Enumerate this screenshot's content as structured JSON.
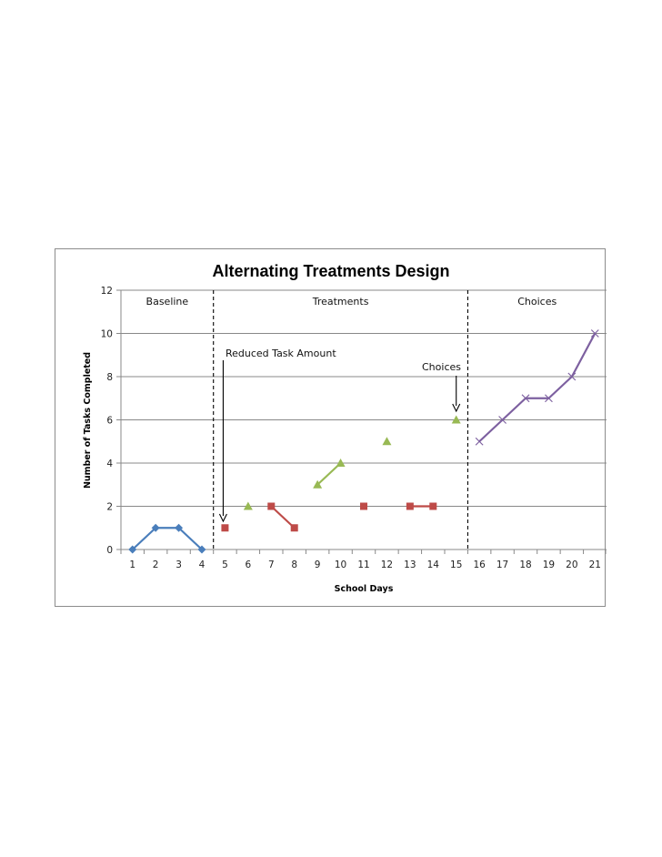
{
  "chart_data": {
    "type": "line",
    "title": "Alternating Treatments Design",
    "xlabel": "School Days",
    "ylabel": "Number of Tasks Completed",
    "x_categories": [
      "1",
      "2",
      "3",
      "4",
      "5",
      "6",
      "7",
      "8",
      "9",
      "10",
      "11",
      "12",
      "13",
      "14",
      "15",
      "16",
      "17",
      "18",
      "19",
      "20",
      "21"
    ],
    "ylim": [
      0,
      12
    ],
    "yticks": [
      "0",
      "2",
      "4",
      "6",
      "8",
      "10",
      "12"
    ],
    "grid": true,
    "phase_lines_after_day": [
      4,
      15
    ],
    "phase_labels": [
      "Baseline",
      "Treatments",
      "Choices"
    ],
    "annotations": [
      {
        "text": "Reduced Task Amount",
        "points_to_day": 5
      },
      {
        "text": "Choices",
        "points_to_day": 15
      }
    ],
    "series": [
      {
        "color": "#4a7ebb",
        "marker": "diamond",
        "segments": [
          [
            [
              1,
              0
            ],
            [
              2,
              1
            ],
            [
              3,
              1
            ],
            [
              4,
              0
            ]
          ]
        ]
      },
      {
        "color": "#be4b48",
        "marker": "square",
        "segments": [
          [
            [
              5,
              1
            ]
          ],
          [
            [
              7,
              2
            ],
            [
              8,
              1
            ]
          ],
          [
            [
              11,
              2
            ]
          ],
          [
            [
              13,
              2
            ],
            [
              14,
              2
            ]
          ]
        ]
      },
      {
        "color": "#98b954",
        "marker": "triangle",
        "segments": [
          [
            [
              6,
              2
            ]
          ],
          [
            [
              9,
              3
            ],
            [
              10,
              4
            ]
          ],
          [
            [
              12,
              5
            ]
          ],
          [
            [
              15,
              6
            ]
          ]
        ]
      },
      {
        "color": "#7d60a0",
        "marker": "x",
        "segments": [
          [
            [
              16,
              5
            ],
            [
              17,
              6
            ],
            [
              18,
              7
            ],
            [
              19,
              7
            ],
            [
              20,
              8
            ],
            [
              21,
              10
            ]
          ]
        ]
      }
    ]
  }
}
